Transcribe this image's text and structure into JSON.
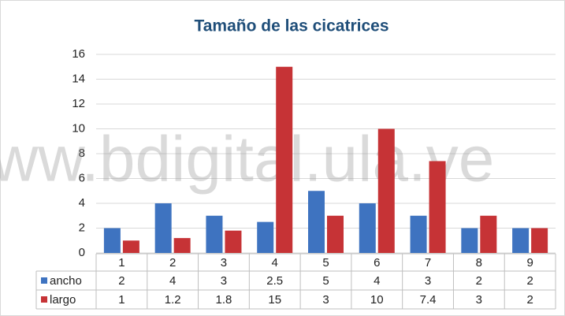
{
  "chart_data": {
    "type": "bar",
    "title": "Tamaño de las cicatrices",
    "watermark": "www.bdigital.ula.ve",
    "categories": [
      "1",
      "2",
      "3",
      "4",
      "5",
      "6",
      "7",
      "8",
      "9"
    ],
    "series": [
      {
        "name": "ancho",
        "color": "#3e73c0",
        "values": [
          2,
          4,
          3,
          2.5,
          5,
          4,
          3,
          2,
          2
        ]
      },
      {
        "name": "largo",
        "color": "#c63336",
        "values": [
          1,
          1.2,
          1.8,
          15,
          3,
          10,
          7.4,
          3,
          2
        ]
      }
    ],
    "ylim": [
      0,
      16
    ],
    "yticks": [
      0,
      2,
      4,
      6,
      8,
      10,
      12,
      14,
      16
    ],
    "grid": true,
    "data_table": true
  }
}
